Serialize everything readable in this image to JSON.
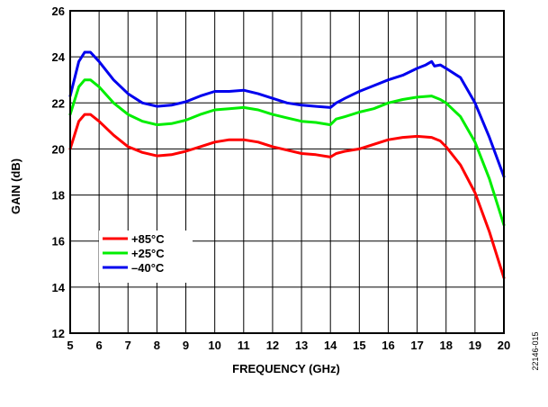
{
  "figure_id": "22146-015",
  "chart_data": {
    "type": "line",
    "xlabel": "FREQUENCY (GHz)",
    "ylabel": "GAIN (dB)",
    "xlim": [
      5,
      20
    ],
    "ylim": [
      12,
      26
    ],
    "xticks": [
      5,
      6,
      7,
      8,
      9,
      10,
      11,
      12,
      13,
      14,
      15,
      16,
      17,
      18,
      19,
      20
    ],
    "yticks": [
      12,
      14,
      16,
      18,
      20,
      22,
      24,
      26
    ],
    "grid": true,
    "legend_position": "lower-left",
    "series": [
      {
        "name": "+85°C",
        "color": "#ff0000",
        "x": [
          5.0,
          5.3,
          5.5,
          5.7,
          6.0,
          6.5,
          7.0,
          7.5,
          8.0,
          8.5,
          9.0,
          9.5,
          10.0,
          10.5,
          11.0,
          11.5,
          12.0,
          12.5,
          13.0,
          13.5,
          14.0,
          14.2,
          14.5,
          15.0,
          15.5,
          16.0,
          16.5,
          17.0,
          17.5,
          17.8,
          18.0,
          18.5,
          19.0,
          19.5,
          20.0
        ],
        "y": [
          20.0,
          21.2,
          21.5,
          21.5,
          21.2,
          20.6,
          20.1,
          19.85,
          19.7,
          19.75,
          19.9,
          20.1,
          20.3,
          20.4,
          20.4,
          20.3,
          20.1,
          19.95,
          19.8,
          19.75,
          19.65,
          19.8,
          19.9,
          20.0,
          20.2,
          20.4,
          20.5,
          20.55,
          20.5,
          20.35,
          20.1,
          19.3,
          18.1,
          16.4,
          14.4
        ]
      },
      {
        "name": "+25°C",
        "color": "#00ee00",
        "x": [
          5.0,
          5.3,
          5.5,
          5.7,
          6.0,
          6.5,
          7.0,
          7.5,
          8.0,
          8.5,
          9.0,
          9.5,
          10.0,
          10.5,
          11.0,
          11.5,
          12.0,
          12.5,
          13.0,
          13.5,
          14.0,
          14.2,
          14.5,
          15.0,
          15.5,
          16.0,
          16.5,
          17.0,
          17.5,
          17.8,
          18.0,
          18.5,
          19.0,
          19.5,
          20.0
        ],
        "y": [
          21.5,
          22.7,
          23.0,
          23.0,
          22.7,
          22.0,
          21.5,
          21.2,
          21.05,
          21.1,
          21.25,
          21.5,
          21.7,
          21.75,
          21.8,
          21.7,
          21.5,
          21.35,
          21.2,
          21.15,
          21.05,
          21.3,
          21.4,
          21.6,
          21.75,
          22.0,
          22.15,
          22.25,
          22.3,
          22.15,
          22.0,
          21.4,
          20.3,
          18.7,
          16.7
        ]
      },
      {
        "name": "–40°C",
        "color": "#0000ee",
        "x": [
          5.0,
          5.3,
          5.5,
          5.7,
          6.0,
          6.5,
          7.0,
          7.5,
          8.0,
          8.5,
          9.0,
          9.5,
          10.0,
          10.5,
          11.0,
          11.5,
          12.0,
          12.5,
          13.0,
          13.5,
          14.0,
          14.2,
          14.5,
          15.0,
          15.5,
          16.0,
          16.5,
          17.0,
          17.3,
          17.5,
          17.6,
          17.8,
          18.0,
          18.5,
          19.0,
          19.5,
          20.0
        ],
        "y": [
          22.3,
          23.8,
          24.2,
          24.2,
          23.8,
          23.0,
          22.4,
          22.0,
          21.85,
          21.9,
          22.05,
          22.3,
          22.5,
          22.5,
          22.55,
          22.4,
          22.2,
          22.0,
          21.9,
          21.85,
          21.8,
          22.0,
          22.2,
          22.5,
          22.75,
          23.0,
          23.2,
          23.5,
          23.65,
          23.8,
          23.6,
          23.65,
          23.5,
          23.1,
          22.0,
          20.5,
          18.8
        ]
      }
    ]
  }
}
